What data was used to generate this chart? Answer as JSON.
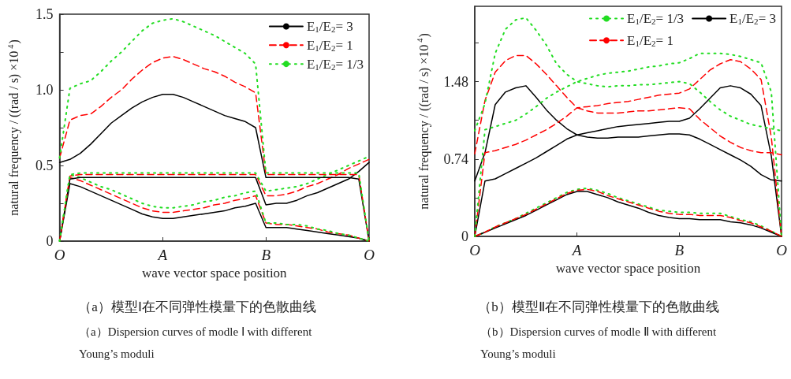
{
  "chart_data": [
    {
      "type": "line",
      "title": "（a）模型Ⅰ在不同弹性模量下的色散曲线",
      "subtitle": "（a）Dispersion curves of modle Ⅰ with different Young’s moduli",
      "xlabel": "wave vector space position",
      "ylabel": "natural frequency / ((rad / s) ×10$^{4}$)",
      "categories": [
        "O",
        null,
        null,
        null,
        null,
        null,
        null,
        null,
        null,
        null,
        "A",
        null,
        null,
        null,
        null,
        null,
        null,
        null,
        null,
        null,
        "B",
        null,
        null,
        null,
        null,
        null,
        null,
        null,
        null,
        null,
        "O"
      ],
      "ylim": [
        0,
        1.5
      ],
      "yticks": [
        0,
        {
          "value": 0.25,
          "label": null
        },
        0.5,
        {
          "value": 0.75,
          "label": null
        },
        {
          "value": 1,
          "label": "1.0"
        },
        {
          "value": 1.25,
          "label": null
        },
        1.5
      ],
      "grid": false,
      "legend": "top right",
      "marker": "none",
      "series": [
        {
          "name": "E$_{1}$/E$_{2}$= 3",
          "color": "#000000",
          "line_style": "solid",
          "values": [
            0,
            0.38,
            0.36,
            0.33,
            0.3,
            0.27,
            0.24,
            0.21,
            0.18,
            0.16,
            0.15,
            0.15,
            0.16,
            0.17,
            0.18,
            0.19,
            0.2,
            0.22,
            0.23,
            0.25,
            0.09,
            0.09,
            0.09,
            0.08,
            0.07,
            0.06,
            0.05,
            0.04,
            0.03,
            0.02,
            0
          ]
        },
        {
          "name": "E$_{1}$/E$_{2}$= 1",
          "color": "#ff0000",
          "line_style": "dashed",
          "values": [
            0,
            0.42,
            0.4,
            0.37,
            0.34,
            0.31,
            0.28,
            0.25,
            0.22,
            0.2,
            0.19,
            0.19,
            0.2,
            0.21,
            0.22,
            0.24,
            0.25,
            0.27,
            0.28,
            0.3,
            0.12,
            0.11,
            0.11,
            0.1,
            0.09,
            0.08,
            0.06,
            0.05,
            0.04,
            0.02,
            0
          ]
        },
        {
          "name": "E$_{1}$/E$_{2}$= 1/3",
          "color": "#22dd22",
          "line_style": "dotted",
          "values": [
            0,
            0.44,
            0.42,
            0.39,
            0.36,
            0.34,
            0.31,
            0.28,
            0.25,
            0.23,
            0.22,
            0.22,
            0.23,
            0.24,
            0.26,
            0.27,
            0.29,
            0.3,
            0.32,
            0.33,
            0.12,
            0.12,
            0.11,
            0.11,
            0.1,
            0.08,
            0.07,
            0.05,
            0.04,
            0.02,
            0
          ]
        },
        {
          "color": "#000000",
          "line_style": "solid",
          "values": [
            0,
            0.41,
            0.42,
            0.42,
            0.42,
            0.42,
            0.42,
            0.42,
            0.42,
            0.42,
            0.42,
            0.42,
            0.42,
            0.42,
            0.42,
            0.42,
            0.42,
            0.42,
            0.42,
            0.42,
            0.24,
            0.25,
            0.25,
            0.27,
            0.3,
            0.32,
            0.35,
            0.38,
            0.41,
            0.46,
            0.52
          ]
        },
        {
          "color": "#ff0000",
          "line_style": "dashed",
          "values": [
            0,
            0.43,
            0.44,
            0.44,
            0.44,
            0.44,
            0.44,
            0.44,
            0.44,
            0.44,
            0.44,
            0.44,
            0.44,
            0.44,
            0.44,
            0.44,
            0.44,
            0.44,
            0.44,
            0.44,
            0.3,
            0.3,
            0.31,
            0.33,
            0.36,
            0.38,
            0.41,
            0.44,
            0.48,
            0.51,
            0.54
          ]
        },
        {
          "color": "#22dd22",
          "line_style": "dotted",
          "values": [
            0,
            0.44,
            0.45,
            0.45,
            0.45,
            0.45,
            0.45,
            0.45,
            0.45,
            0.45,
            0.45,
            0.45,
            0.45,
            0.45,
            0.45,
            0.45,
            0.45,
            0.45,
            0.45,
            0.45,
            0.33,
            0.34,
            0.35,
            0.36,
            0.38,
            0.41,
            0.44,
            0.47,
            0.5,
            0.53,
            0.56
          ]
        },
        {
          "color": "#000000",
          "line_style": "solid",
          "values": [
            0.52,
            0.54,
            0.58,
            0.64,
            0.71,
            0.78,
            0.83,
            0.88,
            0.92,
            0.95,
            0.97,
            0.97,
            0.95,
            0.92,
            0.89,
            0.86,
            0.83,
            0.81,
            0.79,
            0.75,
            0.42,
            0.42,
            0.42,
            0.42,
            0.42,
            0.42,
            0.42,
            0.42,
            0.42,
            0.41,
            0
          ]
        },
        {
          "color": "#ff0000",
          "line_style": "dashed",
          "values": [
            0.55,
            0.8,
            0.83,
            0.84,
            0.89,
            0.95,
            1,
            1.07,
            1.13,
            1.18,
            1.21,
            1.22,
            1.2,
            1.17,
            1.14,
            1.12,
            1.09,
            1.05,
            1.02,
            0.98,
            0.44,
            0.44,
            0.44,
            0.44,
            0.44,
            0.44,
            0.44,
            0.44,
            0.44,
            0.44,
            0
          ]
        },
        {
          "color": "#22dd22",
          "line_style": "dotted",
          "values": [
            0.55,
            1.01,
            1.04,
            1.06,
            1.12,
            1.19,
            1.25,
            1.32,
            1.39,
            1.44,
            1.46,
            1.47,
            1.45,
            1.42,
            1.39,
            1.36,
            1.32,
            1.28,
            1.24,
            1.17,
            0.45,
            0.45,
            0.45,
            0.45,
            0.45,
            0.45,
            0.45,
            0.45,
            0.45,
            0.45,
            0
          ]
        }
      ]
    },
    {
      "type": "line",
      "title": "（b）模型Ⅱ在不同弹性模量下的色散曲线",
      "subtitle": "（b）Dispersion curves of modle Ⅱ with different Young’s moduli",
      "xlabel": "wave vector space position",
      "ylabel": "natural frequency / ((rad / s) ×10$^{4}$)",
      "categories": [
        "O",
        null,
        null,
        null,
        null,
        null,
        null,
        null,
        null,
        null,
        "A",
        null,
        null,
        null,
        null,
        null,
        null,
        null,
        null,
        null,
        "B",
        null,
        null,
        null,
        null,
        null,
        null,
        null,
        null,
        null,
        "O"
      ],
      "ylim": [
        0,
        2.2
      ],
      "yticks": [
        0,
        {
          "value": 0.37,
          "label": null
        },
        0.74,
        {
          "value": 1.11,
          "label": null
        },
        1.48,
        {
          "value": 1.85,
          "label": null
        }
      ],
      "grid": false,
      "legend": "top right",
      "marker": "none",
      "series": [
        {
          "name": "E$_{1}$/E$_{2}$= 1/3",
          "color": "#22dd22",
          "line_style": "dotted",
          "values": [
            0,
            0.04,
            0.09,
            0.13,
            0.17,
            0.22,
            0.27,
            0.32,
            0.37,
            0.42,
            0.45,
            0.46,
            0.44,
            0.41,
            0.37,
            0.34,
            0.31,
            0.28,
            0.25,
            0.24,
            0.23,
            0.23,
            0.22,
            0.22,
            0.22,
            0.19,
            0.16,
            0.14,
            0.1,
            0.05,
            0
          ]
        },
        {
          "name": "E$_{1}$/E$_{2}$= 3",
          "color": "#000000",
          "line_style": "solid",
          "values": [
            0,
            0.04,
            0.08,
            0.12,
            0.16,
            0.2,
            0.25,
            0.3,
            0.35,
            0.4,
            0.43,
            0.43,
            0.4,
            0.37,
            0.33,
            0.3,
            0.27,
            0.23,
            0.2,
            0.18,
            0.17,
            0.17,
            0.16,
            0.16,
            0.16,
            0.14,
            0.13,
            0.11,
            0.08,
            0.04,
            0
          ]
        },
        {
          "name": "E$_{1}$/E$_{2}$= 1",
          "color": "#ff0000",
          "line_style": "dashed",
          "values": [
            0,
            0.04,
            0.09,
            0.13,
            0.17,
            0.21,
            0.26,
            0.31,
            0.36,
            0.41,
            0.44,
            0.45,
            0.43,
            0.39,
            0.36,
            0.33,
            0.3,
            0.27,
            0.24,
            0.22,
            0.21,
            0.21,
            0.2,
            0.2,
            0.2,
            0.18,
            0.15,
            0.13,
            0.09,
            0.05,
            0
          ]
        },
        {
          "color": "#000000",
          "line_style": "solid",
          "values": [
            0,
            0.53,
            0.55,
            0.6,
            0.65,
            0.7,
            0.75,
            0.81,
            0.87,
            0.93,
            0.97,
            0.99,
            1.01,
            1.03,
            1.05,
            1.06,
            1.07,
            1.08,
            1.09,
            1.1,
            1.1,
            1.13,
            1.22,
            1.32,
            1.42,
            1.44,
            1.42,
            1.36,
            1.25,
            0.77,
            0
          ]
        },
        {
          "color": "#000000",
          "line_style": "solid",
          "values": [
            0.53,
            0.8,
            1.26,
            1.38,
            1.42,
            1.44,
            1.33,
            1.21,
            1.11,
            1.03,
            0.97,
            0.95,
            0.94,
            0.94,
            0.95,
            0.95,
            0.95,
            0.96,
            0.97,
            0.98,
            0.98,
            0.97,
            0.93,
            0.88,
            0.83,
            0.78,
            0.73,
            0.67,
            0.59,
            0.54,
            0.53
          ]
        },
        {
          "color": "#ff0000",
          "line_style": "dashed",
          "values": [
            0,
            0.8,
            0.82,
            0.85,
            0.88,
            0.92,
            0.97,
            1.02,
            1.08,
            1.15,
            1.23,
            1.24,
            1.25,
            1.27,
            1.28,
            1.29,
            1.31,
            1.33,
            1.35,
            1.36,
            1.37,
            1.41,
            1.5,
            1.59,
            1.65,
            1.69,
            1.67,
            1.6,
            1.5,
            0.95,
            0
          ]
        },
        {
          "color": "#ff0000",
          "line_style": "dashed",
          "values": [
            0.79,
            1.3,
            1.57,
            1.68,
            1.73,
            1.73,
            1.65,
            1.55,
            1.44,
            1.33,
            1.23,
            1.2,
            1.18,
            1.18,
            1.18,
            1.19,
            1.2,
            1.2,
            1.21,
            1.22,
            1.23,
            1.22,
            1.12,
            1.04,
            0.96,
            0.9,
            0.85,
            0.82,
            0.8,
            0.8,
            0.78
          ]
        },
        {
          "color": "#22dd22",
          "line_style": "dotted",
          "values": [
            0,
            1.02,
            1.05,
            1.08,
            1.11,
            1.17,
            1.24,
            1.32,
            1.38,
            1.43,
            1.48,
            1.51,
            1.54,
            1.56,
            1.57,
            1.58,
            1.6,
            1.62,
            1.63,
            1.65,
            1.66,
            1.7,
            1.75,
            1.75,
            1.75,
            1.74,
            1.72,
            1.69,
            1.66,
            1.38,
            0
          ]
        },
        {
          "color": "#22dd22",
          "line_style": "dotted",
          "values": [
            1.01,
            1.27,
            1.75,
            1.98,
            2.07,
            2.09,
            1.97,
            1.83,
            1.65,
            1.55,
            1.48,
            1.46,
            1.44,
            1.43,
            1.44,
            1.44,
            1.45,
            1.45,
            1.46,
            1.47,
            1.48,
            1.46,
            1.38,
            1.29,
            1.21,
            1.15,
            1.11,
            1.07,
            1.05,
            1.03,
            1.01
          ]
        }
      ]
    }
  ]
}
